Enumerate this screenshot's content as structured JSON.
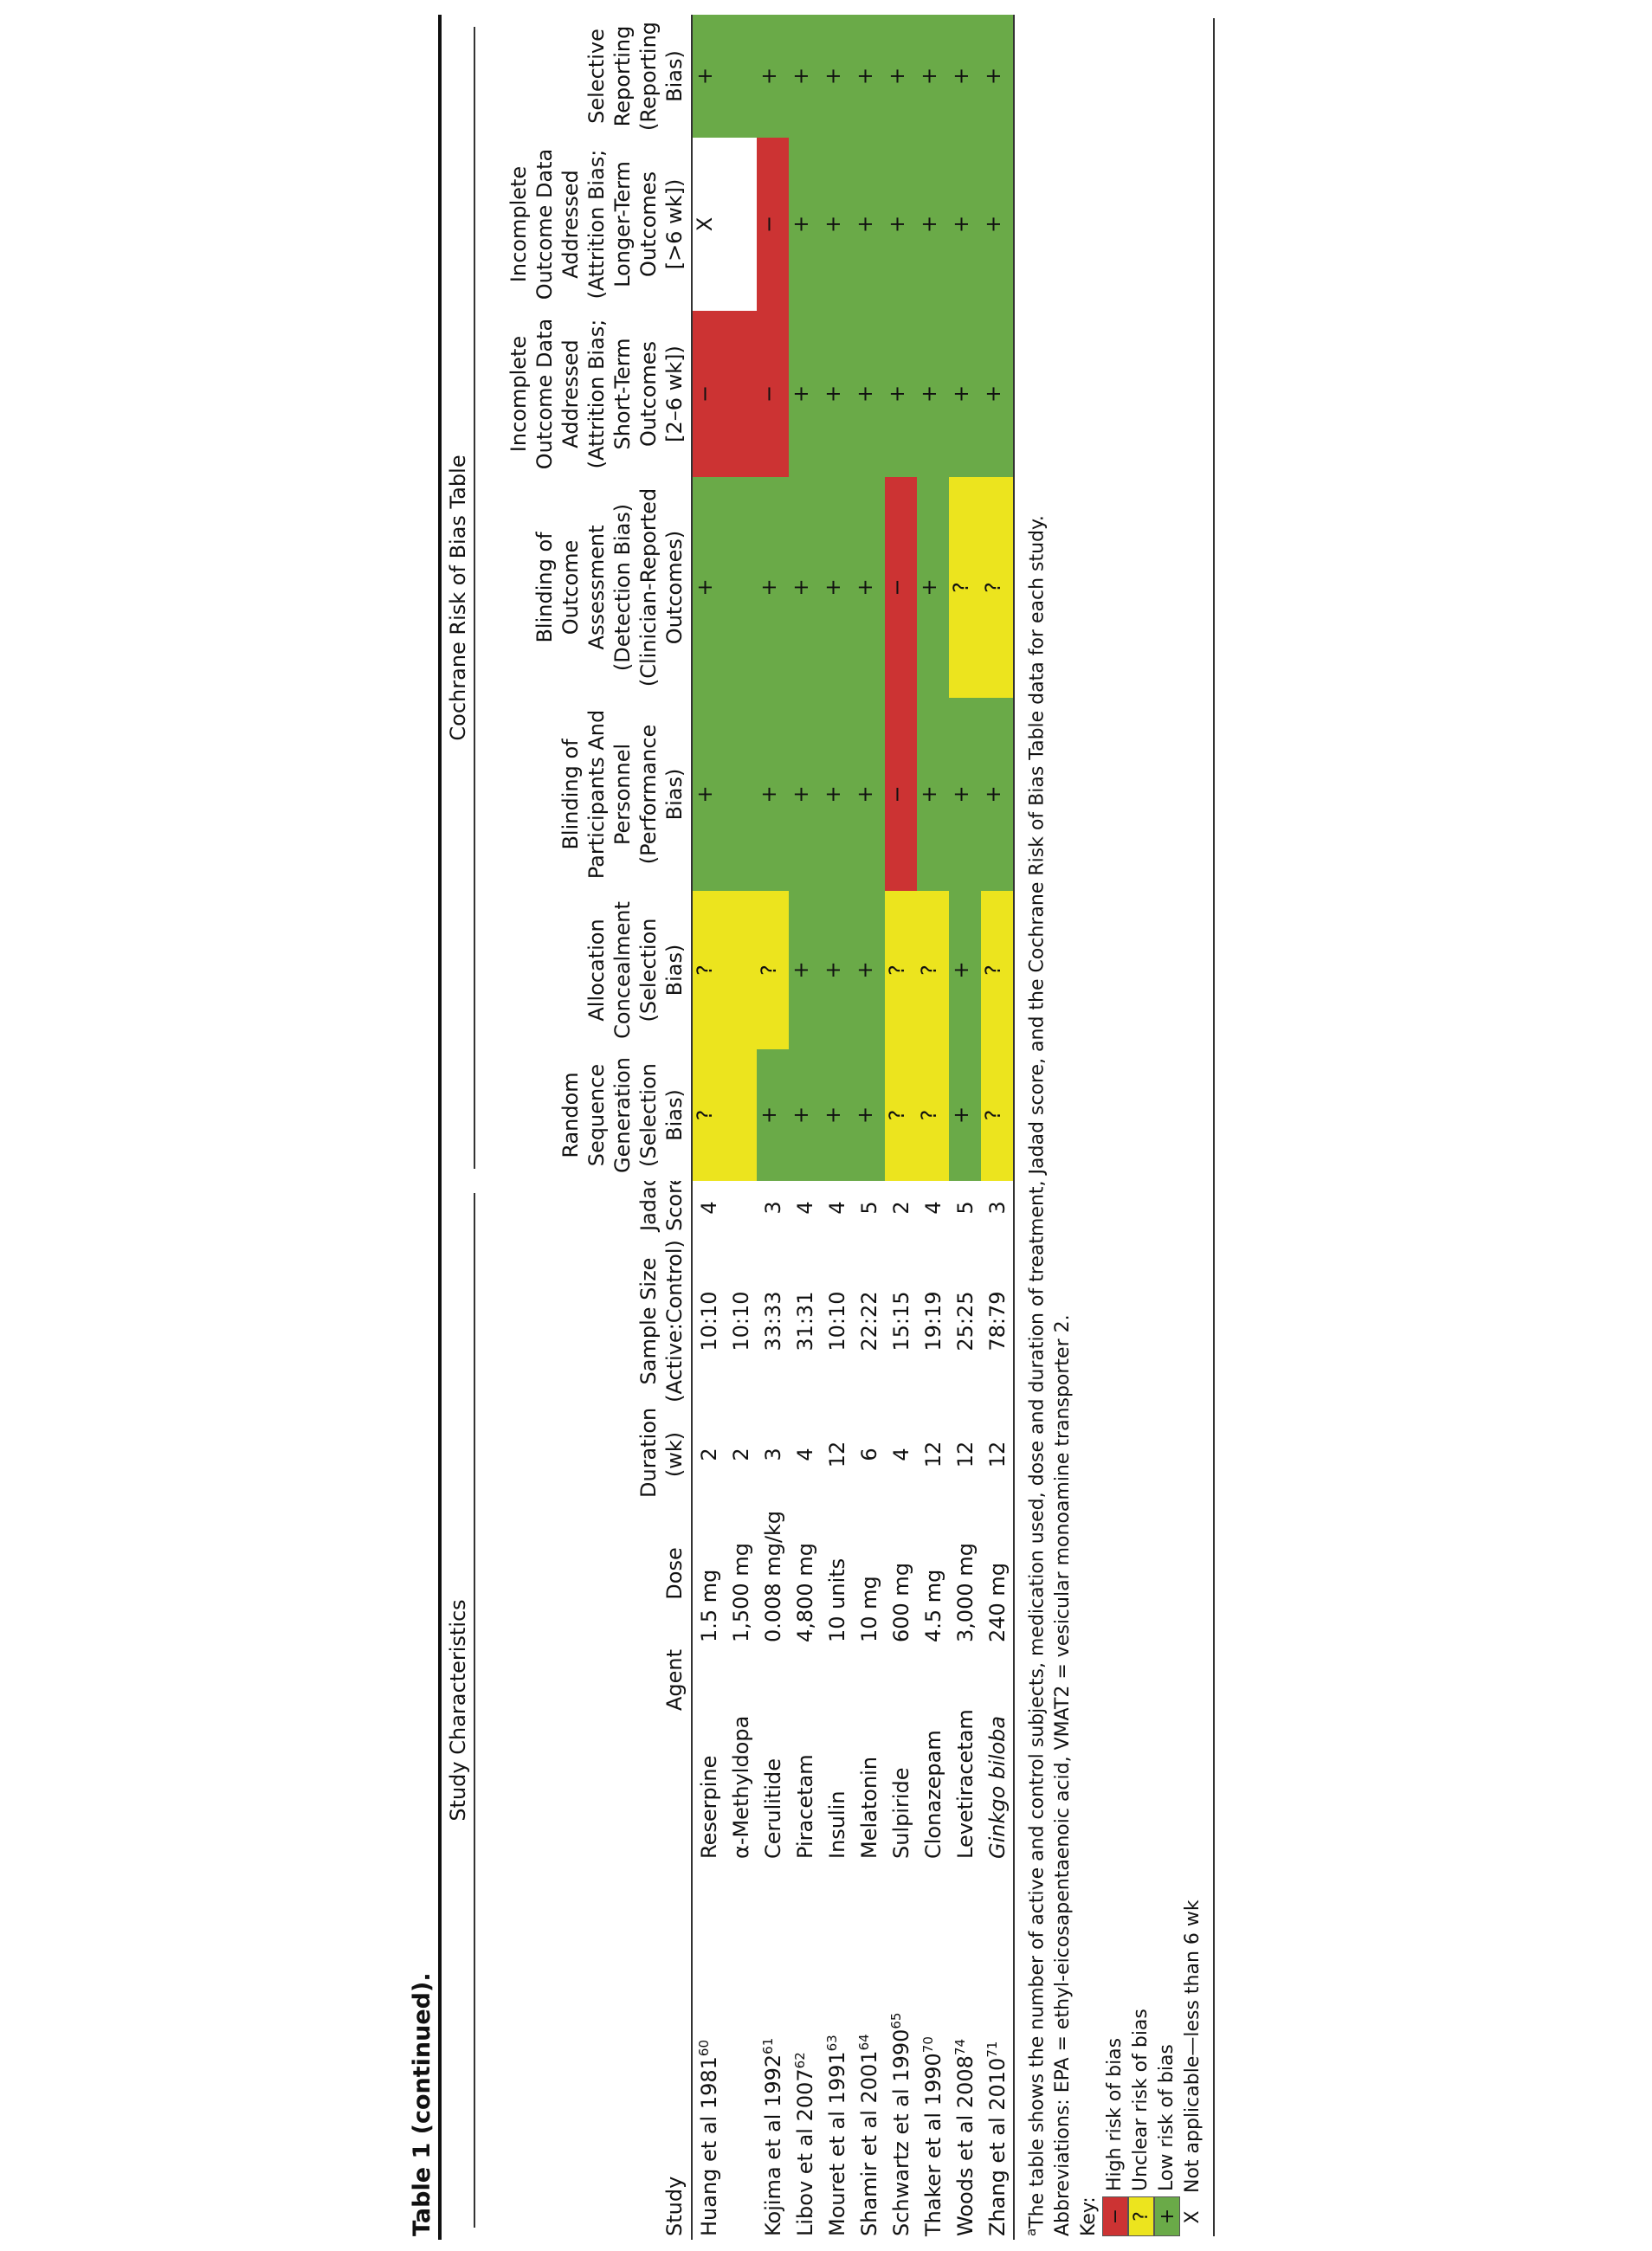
{
  "title": "Table 1 (continued).",
  "group_headers": [
    "Study Characteristics",
    "Cochrane Risk of Bias Table"
  ],
  "columns": [
    "Study",
    "Agent",
    "Dose",
    "Duration\n(wk)",
    "Sample Size\n(Active:Control)",
    "Jadad\nScore",
    "Random\nSequence\nGeneration\n(Selection\nBias)",
    "Allocation\nConcealment\n(Selection\nBias)",
    "Blinding of\nParticipants And\nPersonnel\n(Performance\nBias)",
    "Blinding of\nOutcome\nAssessment\n(Detection Bias)\n(Clinician-Reported\nOutcomes)",
    "Incomplete\nOutcome Data\nAddressed\n(Attrition Bias;\nShort-Term\nOutcomes\n[2–6 wk])",
    "Incomplete\nOutcome Data\nAddressed\n(Attrition Bias;\nLonger-Term\nOutcomes\n[>6 wk])",
    "Selective\nReporting\n(Reporting\nBias)"
  ],
  "rows": [
    {
      "study": "Huang et al 1981",
      "ref": "60",
      "agent": "Reserpine",
      "dose": "1.5 mg",
      "duration": 2,
      "sample_size": "10:10",
      "jadad": 4,
      "bias": [
        "?",
        "?",
        "+",
        "+",
        "−",
        "X",
        "+"
      ]
    },
    {
      "agent": "α-Methyldopa",
      "dose": "1,500 mg",
      "duration": 2,
      "sample_size": "10:10"
    },
    {
      "study": "Kojima et al 1992",
      "ref": "61",
      "agent": "Cerulitide",
      "dose": "0.008 mg/kg",
      "duration": 3,
      "sample_size": "33:33",
      "jadad": 3,
      "bias": [
        "+",
        "?",
        "+",
        "+",
        "−",
        "−",
        "+"
      ]
    },
    {
      "study": "Libov et al 2007",
      "ref": "62",
      "agent": "Piracetam",
      "dose": "4,800 mg",
      "duration": 4,
      "sample_size": "31:31",
      "jadad": 4,
      "bias": [
        "+",
        "+",
        "+",
        "+",
        "+",
        "+",
        "+"
      ]
    },
    {
      "study": "Mouret et al 1991",
      "ref": "63",
      "agent": "Insulin",
      "dose": "10 units",
      "duration": 12,
      "sample_size": "10:10",
      "jadad": 4,
      "bias": [
        "+",
        "+",
        "+",
        "+",
        "+",
        "+",
        "+"
      ]
    },
    {
      "study": "Shamir et al 2001",
      "ref": "64",
      "agent": "Melatonin",
      "dose": "10 mg",
      "duration": 6,
      "sample_size": "22:22",
      "jadad": 5,
      "bias": [
        "+",
        "+",
        "+",
        "+",
        "+",
        "+",
        "+"
      ]
    },
    {
      "study": "Schwartz et al 1990",
      "ref": "65",
      "agent": "Sulpiride",
      "dose": "600 mg",
      "duration": 4,
      "sample_size": "15:15",
      "jadad": 2,
      "bias": [
        "?",
        "?",
        "−",
        "−",
        "+",
        "+",
        "+"
      ]
    },
    {
      "study": "Thaker et al 1990",
      "ref": "70",
      "agent": "Clonazepam",
      "dose": "4.5 mg",
      "duration": 12,
      "sample_size": "19:19",
      "jadad": 4,
      "bias": [
        "?",
        "?",
        "+",
        "+",
        "+",
        "+",
        "+"
      ]
    },
    {
      "study": "Woods et al 2008",
      "ref": "74",
      "agent": "Levetiracetam",
      "dose": "3,000 mg",
      "duration": 12,
      "sample_size": "25:25",
      "jadad": 5,
      "bias": [
        "+",
        "+",
        "+",
        "?",
        "+",
        "+",
        "+"
      ]
    },
    {
      "study": "Zhang et al 2010",
      "ref": "71",
      "agent": "Ginkgo biloba",
      "agent_italic": true,
      "dose": "240 mg",
      "duration": 12,
      "sample_size": "78:79",
      "jadad": 3,
      "bias": [
        "?",
        "?",
        "+",
        "?",
        "+",
        "+",
        "+"
      ]
    }
  ],
  "footnote": {
    "marker": "a",
    "text": "The table shows the number of active and control subjects, medication used, dose and duration of treatment, Jadad score, and the Cochrane Risk of Bias Table data for each study."
  },
  "abbreviations": "Abbreviations: EPA = ethyl-eicosapentaenoic acid, VMAT2 = vesicular monoamine transporter 2.",
  "key": {
    "title": "Key:",
    "items": [
      {
        "symbol": "−",
        "label": "High risk of bias",
        "color": "#cc3333"
      },
      {
        "symbol": "?",
        "label": "Unclear risk of bias",
        "color": "#ece41e"
      },
      {
        "symbol": "+",
        "label": "Low risk of bias",
        "color": "#6aaa48"
      },
      {
        "symbol": "X",
        "label": "Not applicable—less than 6 wk"
      }
    ]
  }
}
